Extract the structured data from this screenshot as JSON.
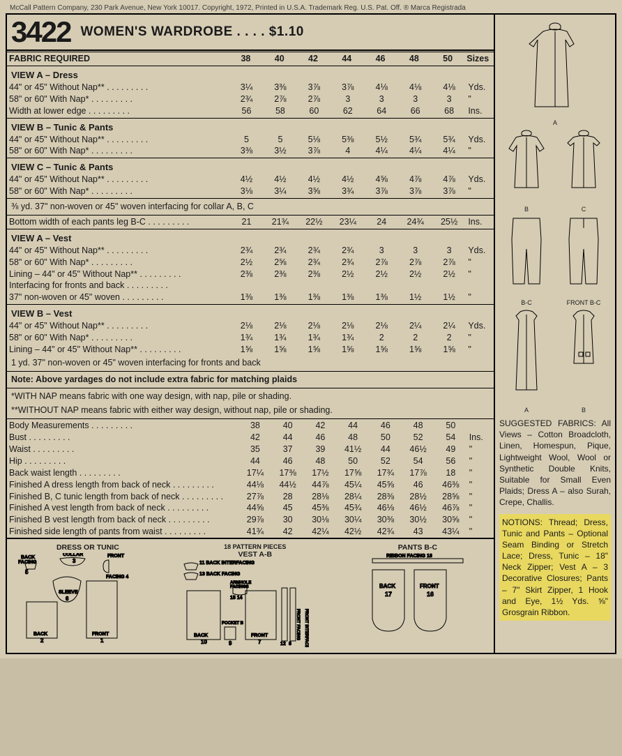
{
  "topline": "McCall Pattern Company, 230 Park Avenue, New York 10017. Copyright, 1972, Printed in U.S.A. Trademark Reg. U.S. Pat. Off. ® Marca Registrada",
  "pattern_number": "3422",
  "title": "WOMEN'S WARDROBE . . . . $1.10",
  "sizes_header": {
    "label": "FABRIC REQUIRED",
    "sizes": [
      "38",
      "40",
      "42",
      "44",
      "46",
      "48",
      "50"
    ],
    "unit": "Sizes"
  },
  "view_a_dress": {
    "heading": "VIEW A – Dress",
    "rows": [
      {
        "label": "44\" or 45\" Without Nap**",
        "vals": [
          "3¼",
          "3⅜",
          "3⅞",
          "3⅞",
          "4⅛",
          "4⅛",
          "4⅛"
        ],
        "unit": "Yds."
      },
      {
        "label": "58\" or 60\" With Nap*",
        "vals": [
          "2¾",
          "2⅞",
          "2⅞",
          "3",
          "3",
          "3",
          "3"
        ],
        "unit": "\""
      },
      {
        "label": "Width at lower edge",
        "vals": [
          "56",
          "58",
          "60",
          "62",
          "64",
          "66",
          "68"
        ],
        "unit": "Ins."
      }
    ]
  },
  "view_b_tunic": {
    "heading": "VIEW B – Tunic & Pants",
    "rows": [
      {
        "label": "44\" or 45\" Without Nap**",
        "vals": [
          "5",
          "5",
          "5⅛",
          "5⅜",
          "5½",
          "5¾",
          "5¾"
        ],
        "unit": "Yds."
      },
      {
        "label": "58\" or 60\" With Nap*",
        "vals": [
          "3⅜",
          "3½",
          "3⅞",
          "4",
          "4¼",
          "4¼",
          "4¼"
        ],
        "unit": "\""
      }
    ]
  },
  "view_c_tunic": {
    "heading": "VIEW C – Tunic & Pants",
    "rows": [
      {
        "label": "44\" or 45\" Without Nap**",
        "vals": [
          "4½",
          "4½",
          "4½",
          "4½",
          "4⅝",
          "4⅞",
          "4⅞"
        ],
        "unit": "Yds."
      },
      {
        "label": "58\" or 60\" With Nap*",
        "vals": [
          "3⅛",
          "3¼",
          "3⅝",
          "3¾",
          "3⅞",
          "3⅞",
          "3⅞"
        ],
        "unit": "\""
      }
    ]
  },
  "interfacing_note": "⅜ yd. 37\" non-woven or 45\" woven interfacing for collar A, B, C",
  "pants_width": {
    "label": "Bottom width of each pants leg B-C",
    "vals": [
      "21",
      "21¾",
      "22½",
      "23¼",
      "24",
      "24¾",
      "25½"
    ],
    "unit": "Ins."
  },
  "view_a_vest": {
    "heading": "VIEW A – Vest",
    "rows": [
      {
        "label": "44\" or 45\" Without Nap**",
        "vals": [
          "2¾",
          "2¾",
          "2¾",
          "2¾",
          "3",
          "3",
          "3"
        ],
        "unit": "Yds."
      },
      {
        "label": "58\" or 60\" With Nap*",
        "vals": [
          "2½",
          "2⅝",
          "2¾",
          "2¾",
          "2⅞",
          "2⅞",
          "2⅞"
        ],
        "unit": "\""
      },
      {
        "label": "Lining – 44\" or 45\" Without Nap**",
        "vals": [
          "2⅜",
          "2⅜",
          "2⅜",
          "2½",
          "2½",
          "2½",
          "2½"
        ],
        "unit": "\""
      },
      {
        "label": "Interfacing for fronts and back",
        "vals": [
          "",
          "",
          "",
          "",
          "",
          "",
          ""
        ],
        "unit": ""
      },
      {
        "label": "37\" non-woven or 45\" woven",
        "vals": [
          "1⅜",
          "1⅜",
          "1⅜",
          "1⅜",
          "1⅜",
          "1½",
          "1½"
        ],
        "unit": "\""
      }
    ]
  },
  "view_b_vest": {
    "heading": "VIEW B – Vest",
    "rows": [
      {
        "label": "44\" or 45\" Without Nap**",
        "vals": [
          "2⅛",
          "2⅛",
          "2⅛",
          "2⅛",
          "2⅛",
          "2¼",
          "2¼"
        ],
        "unit": "Yds."
      },
      {
        "label": "58\" or 60\" With Nap*",
        "vals": [
          "1¾",
          "1¾",
          "1¾",
          "1¾",
          "2",
          "2",
          "2"
        ],
        "unit": "\""
      },
      {
        "label": "Lining – 44\" or 45\" Without Nap**",
        "vals": [
          "1⅝",
          "1⅝",
          "1⅝",
          "1⅝",
          "1⅝",
          "1⅝",
          "1⅝"
        ],
        "unit": "\""
      }
    ],
    "tail": "1 yd. 37\" non-woven or 45\" woven interfacing for fronts and back"
  },
  "note_plaids": "Note: Above yardages do not include extra fabric for matching plaids",
  "nap_note1": "*WITH NAP means fabric with one way design, with nap, pile or shading.",
  "nap_note2": "**WITHOUT NAP means fabric with either way design, without nap, pile or shading.",
  "body": {
    "rows": [
      {
        "label": "Body Measurements",
        "vals": [
          "38",
          "40",
          "42",
          "44",
          "46",
          "48",
          "50"
        ],
        "unit": ""
      },
      {
        "label": "Bust",
        "vals": [
          "42",
          "44",
          "46",
          "48",
          "50",
          "52",
          "54"
        ],
        "unit": "Ins."
      },
      {
        "label": "Waist",
        "vals": [
          "35",
          "37",
          "39",
          "41½",
          "44",
          "46½",
          "49"
        ],
        "unit": "\""
      },
      {
        "label": "Hip",
        "vals": [
          "44",
          "46",
          "48",
          "50",
          "52",
          "54",
          "56"
        ],
        "unit": "\""
      },
      {
        "label": "Back waist length",
        "vals": [
          "17¼",
          "17⅜",
          "17½",
          "17⅝",
          "17¾",
          "17⅞",
          "18"
        ],
        "unit": "\""
      },
      {
        "label": "Finished A dress length from back of neck",
        "vals": [
          "44⅛",
          "44½",
          "44⅞",
          "45¼",
          "45⅝",
          "46",
          "46⅜"
        ],
        "unit": "\""
      },
      {
        "label": "Finished B, C tunic length from back of neck",
        "vals": [
          "27⅞",
          "28",
          "28⅛",
          "28¼",
          "28⅜",
          "28½",
          "28⅝"
        ],
        "unit": "\""
      },
      {
        "label": "Finished A vest length from back of neck",
        "vals": [
          "44⅝",
          "45",
          "45⅜",
          "45¾",
          "46⅛",
          "46½",
          "46⅞"
        ],
        "unit": "\""
      },
      {
        "label": "Finished B vest length from back of neck",
        "vals": [
          "29⅞",
          "30",
          "30⅛",
          "30¼",
          "30⅜",
          "30½",
          "30⅝"
        ],
        "unit": "\""
      },
      {
        "label": "Finished side length of pants from waist",
        "vals": [
          "41¾",
          "42",
          "42¼",
          "42½",
          "42¾",
          "43",
          "43¼"
        ],
        "unit": "\""
      }
    ]
  },
  "layouts": {
    "pieces_label": "18 PATTERN PIECES",
    "a": {
      "title": "DRESS OR TUNIC",
      "parts": [
        "BACK FACING 5",
        "COLLAR 3",
        "FRONT FACING 4",
        "SLEEVE 6",
        "BACK 2",
        "FRONT 1"
      ]
    },
    "b": {
      "title": "VEST A-B",
      "parts": [
        "BACK INTERFACING 11",
        "BACK FACING 13",
        "ARMHOLE FACINGS 15 14",
        "BACK 10",
        "POCKET B 9",
        "FRONT 7",
        "FRONT FACING 12",
        "FRONT INTERFACING 8"
      ]
    },
    "c": {
      "title": "PANTS B-C",
      "parts": [
        "RIBBON FACING 18",
        "BACK 17",
        "FRONT 16"
      ]
    }
  },
  "suggested": "SUGGESTED FABRICS: All Views – Cotton Broadcloth, Linen, Homespun, Pique, Lightweight Wool, Wool or Synthetic Double Knits, Suitable for Small Even Plaids; Dress A – also Surah, Crepe, Challis.",
  "notions": "NOTIONS: Thread; Dress, Tunic and Pants – Optional Seam Binding or Stretch Lace; Dress, Tunic – 18\" Neck Zipper; Vest A – 3 Decorative Closures; Pants – 7\" Skirt Zipper, 1 Hook and Eye, 1½ Yds. ⅝\" Grosgrain Ribbon."
}
